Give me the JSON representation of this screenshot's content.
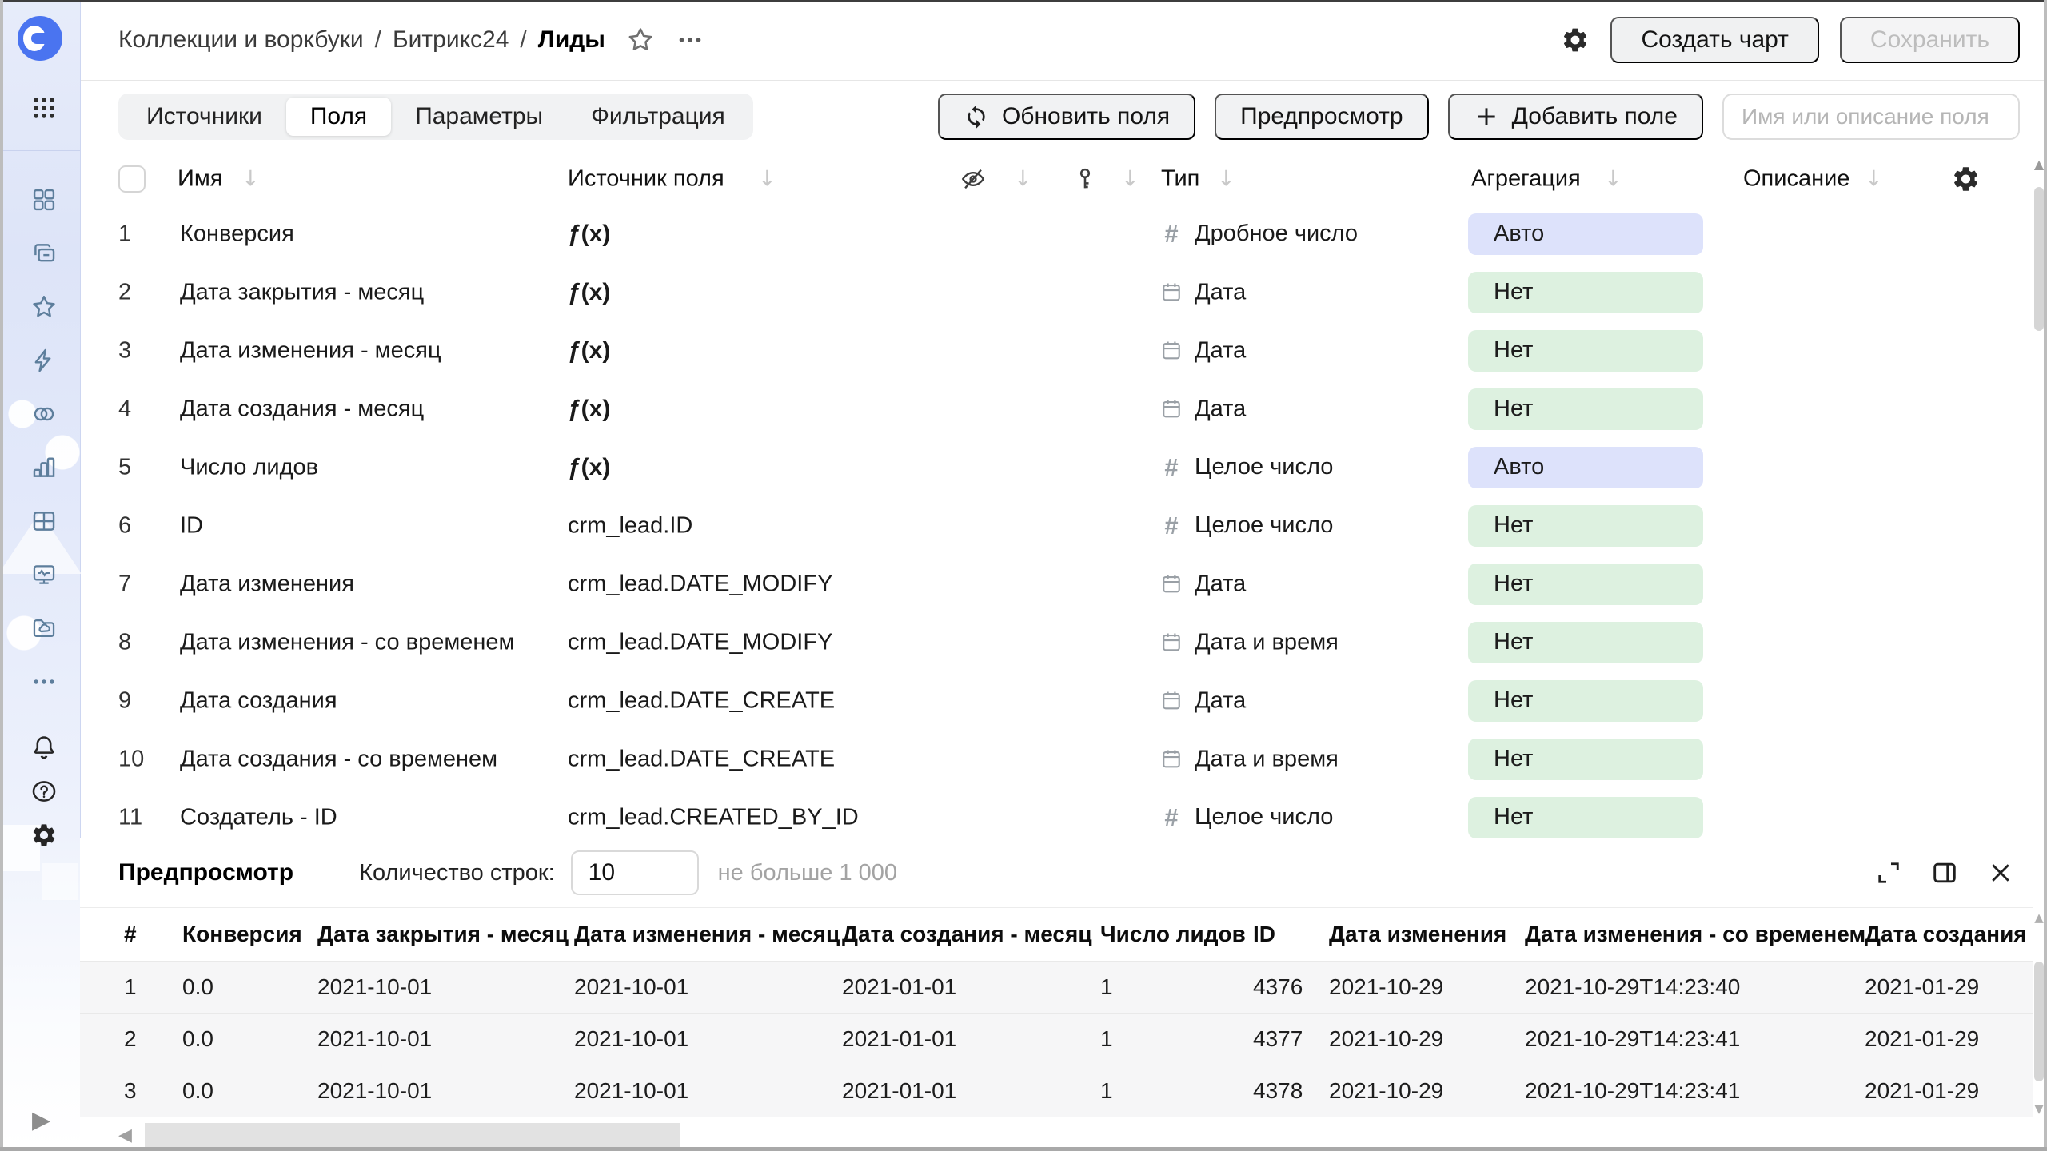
{
  "topbar": {
    "breadcrumb": [
      "Коллекции и воркбуки",
      "Битрикс24",
      "Лиды"
    ],
    "separator": "/",
    "create_chart_label": "Создать чарт",
    "save_label": "Сохранить"
  },
  "toolbar": {
    "tabs": [
      {
        "name": "sources",
        "label": "Источники",
        "active": false
      },
      {
        "name": "fields",
        "label": "Поля",
        "active": true
      },
      {
        "name": "parameters",
        "label": "Параметры",
        "active": false
      },
      {
        "name": "filtering",
        "label": "Фильтрация",
        "active": false
      }
    ],
    "refresh_label": "Обновить поля",
    "preview_label": "Предпросмотр",
    "add_field_label": "Добавить поле",
    "search_placeholder": "Имя или описание поля"
  },
  "sidebar": {
    "items": [
      {
        "name": "services-grid",
        "icon": "grid4"
      },
      {
        "name": "collections",
        "icon": "folders"
      },
      {
        "name": "favorites",
        "icon": "star"
      },
      {
        "name": "connections",
        "icon": "bolt"
      },
      {
        "name": "datasets",
        "icon": "circles"
      },
      {
        "name": "charts",
        "icon": "chart"
      },
      {
        "name": "dashboards",
        "icon": "table"
      },
      {
        "name": "monitoring",
        "icon": "monitor"
      },
      {
        "name": "storage",
        "icon": "foldercloud"
      },
      {
        "name": "more",
        "icon": "dots"
      }
    ],
    "bottom_items": [
      {
        "name": "notifications",
        "icon": "bell"
      },
      {
        "name": "help",
        "icon": "help"
      },
      {
        "name": "settings",
        "icon": "gear"
      }
    ]
  },
  "fields_table": {
    "headers": {
      "name": "Имя",
      "source": "Источник поля",
      "type": "Тип",
      "aggregation": "Агрегация",
      "description": "Описание"
    },
    "rows": [
      {
        "num": "1",
        "name": "Конверсия",
        "source": "formula",
        "type": "Дробное число",
        "type_icon": "number",
        "agg": "Авто",
        "agg_kind": "auto"
      },
      {
        "num": "2",
        "name": "Дата закрытия - месяц",
        "source": "formula",
        "type": "Дата",
        "type_icon": "date",
        "agg": "Нет",
        "agg_kind": "none"
      },
      {
        "num": "3",
        "name": "Дата изменения - месяц",
        "source": "formula",
        "type": "Дата",
        "type_icon": "date",
        "agg": "Нет",
        "agg_kind": "none"
      },
      {
        "num": "4",
        "name": "Дата создания - месяц",
        "source": "formula",
        "type": "Дата",
        "type_icon": "date",
        "agg": "Нет",
        "agg_kind": "none"
      },
      {
        "num": "5",
        "name": "Число лидов",
        "source": "formula",
        "type": "Целое число",
        "type_icon": "number",
        "agg": "Авто",
        "agg_kind": "auto"
      },
      {
        "num": "6",
        "name": "ID",
        "source": "crm_lead.ID",
        "type": "Целое число",
        "type_icon": "number",
        "agg": "Нет",
        "agg_kind": "none"
      },
      {
        "num": "7",
        "name": "Дата изменения",
        "source": "crm_lead.DATE_MODIFY",
        "type": "Дата",
        "type_icon": "date",
        "agg": "Нет",
        "agg_kind": "none"
      },
      {
        "num": "8",
        "name": "Дата изменения - со временем",
        "source": "crm_lead.DATE_MODIFY",
        "type": "Дата и время",
        "type_icon": "date",
        "agg": "Нет",
        "agg_kind": "none"
      },
      {
        "num": "9",
        "name": "Дата создания",
        "source": "crm_lead.DATE_CREATE",
        "type": "Дата",
        "type_icon": "date",
        "agg": "Нет",
        "agg_kind": "none"
      },
      {
        "num": "10",
        "name": "Дата создания - со временем",
        "source": "crm_lead.DATE_CREATE",
        "type": "Дата и время",
        "type_icon": "date",
        "agg": "Нет",
        "agg_kind": "none"
      },
      {
        "num": "11",
        "name": "Создатель - ID",
        "source": "crm_lead.CREATED_BY_ID",
        "type": "Целое число",
        "type_icon": "number",
        "agg": "Нет",
        "agg_kind": "none"
      }
    ],
    "formula_icon_label": "ƒ(x)"
  },
  "preview": {
    "title": "Предпросмотр",
    "rows_count_label": "Количество строк:",
    "rows_count_value": "10",
    "rows_limit_hint": "не больше 1 000",
    "table": {
      "headers": [
        "#",
        "Конверсия",
        "Дата закрытия - месяц",
        "Дата изменения - месяц",
        "Дата создания - месяц",
        "Число лидов",
        "ID",
        "Дата изменения",
        "Дата изменения - со временем",
        "Дата создания"
      ],
      "rows": [
        [
          "1",
          "0.0",
          "2021-10-01",
          "2021-10-01",
          "2021-01-01",
          "1",
          "4376",
          "2021-10-29",
          "2021-10-29T14:23:40",
          "2021-01-29"
        ],
        [
          "2",
          "0.0",
          "2021-10-01",
          "2021-10-01",
          "2021-01-01",
          "1",
          "4377",
          "2021-10-29",
          "2021-10-29T14:23:41",
          "2021-01-29"
        ],
        [
          "3",
          "0.0",
          "2021-10-01",
          "2021-10-01",
          "2021-01-01",
          "1",
          "4378",
          "2021-10-29",
          "2021-10-29T14:23:41",
          "2021-01-29"
        ]
      ]
    }
  },
  "colors": {
    "accent_blue": "#4a74f0",
    "badge_auto_bg": "#dde2fb",
    "badge_none_bg": "#ddf1e0",
    "sidebar_icon": "#5d7e9c"
  },
  "icons": {
    "topbar": [
      "star-icon",
      "ellipsis-icon",
      "gear-icon"
    ],
    "fields_header": [
      "hidden-eye-icon",
      "key-icon",
      "gear-icon"
    ],
    "preview_controls": [
      "expand-icon",
      "split-panel-icon",
      "close-icon"
    ]
  }
}
